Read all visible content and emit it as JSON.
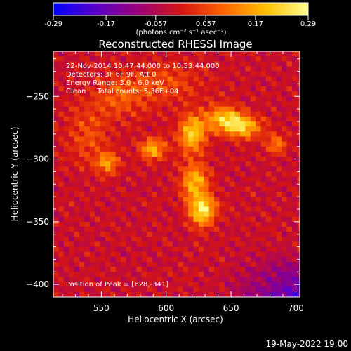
{
  "chart_data": {
    "type": "heatmap",
    "title": "Reconstructed RHESSI Image",
    "xlabel": "Heliocentric X (arcsec)",
    "ylabel": "Heliocentric Y (arcsec)",
    "xlim": [
      513,
      703
    ],
    "ylim": [
      -410,
      -214
    ],
    "x_ticks": [
      550,
      600,
      650,
      700
    ],
    "y_ticks": [
      -250,
      -300,
      -350,
      -400
    ],
    "colorbar": {
      "min": -0.29,
      "max": 0.29,
      "ticks": [
        "-0.29",
        "-0.17",
        "-0.057",
        "0.057",
        "0.17",
        "0.29"
      ],
      "tick_values": [
        -0.29,
        -0.17,
        -0.057,
        0.057,
        0.17,
        0.29
      ],
      "unit_label": "(photons cm⁻² s⁻¹ asec⁻²)",
      "colormap": [
        "#0000ff",
        "#5a00c8",
        "#9a0078",
        "#d41414",
        "#ff6400",
        "#ffc000",
        "#ffff90"
      ]
    },
    "annotations": [
      "22-Nov-2014 10:47:44.000 to 10:53:44.000",
      "Detectors: 3F 6F 9F, Att 0",
      "Energy Range: 3.0 - 6.0 keV",
      "Clean     Total counts: 5.36E+04"
    ],
    "peak_label": "Position of Peak = [628,-341]",
    "peak": {
      "x": 628,
      "y": -341
    },
    "sources": [
      {
        "x": 628,
        "y": -341,
        "flux": 0.29,
        "sx": 7,
        "sy": 8
      },
      {
        "x": 622,
        "y": -318,
        "flux": 0.22,
        "sx": 7,
        "sy": 10
      },
      {
        "x": 620,
        "y": -280,
        "flux": 0.24,
        "sx": 7,
        "sy": 10
      },
      {
        "x": 645,
        "y": -268,
        "flux": 0.23,
        "sx": 11,
        "sy": 7
      },
      {
        "x": 660,
        "y": -275,
        "flux": 0.2,
        "sx": 10,
        "sy": 6
      },
      {
        "x": 590,
        "y": -292,
        "flux": 0.2,
        "sx": 7,
        "sy": 6
      },
      {
        "x": 555,
        "y": -303,
        "flux": 0.16,
        "sx": 6,
        "sy": 6
      },
      {
        "x": 685,
        "y": -288,
        "flux": 0.15,
        "sx": 5,
        "sy": 5
      },
      {
        "x": 565,
        "y": -250,
        "flux": 0.09,
        "sx": 14,
        "sy": 12
      },
      {
        "x": 540,
        "y": -280,
        "flux": 0.08,
        "sx": 12,
        "sy": 18
      },
      {
        "x": 600,
        "y": -240,
        "flux": 0.08,
        "sx": 20,
        "sy": 12
      }
    ]
  },
  "footer": {
    "date": "19-May-2022 19:00"
  }
}
